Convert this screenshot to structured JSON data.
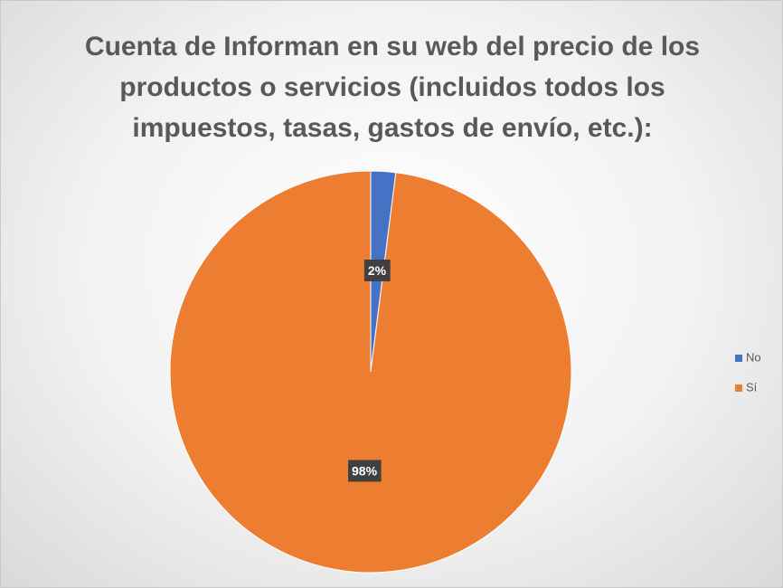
{
  "chart_data": {
    "type": "pie",
    "title": "Cuenta de Informan en su web del precio de los productos o servicios (incluidos todos los impuestos, tasas, gastos de envío, etc.):",
    "categories": [
      "No",
      "Sí"
    ],
    "values": [
      2,
      98
    ],
    "value_labels": [
      "2%",
      "98%"
    ],
    "colors": [
      "#4472c4",
      "#ed7d31"
    ],
    "legend": "right"
  }
}
